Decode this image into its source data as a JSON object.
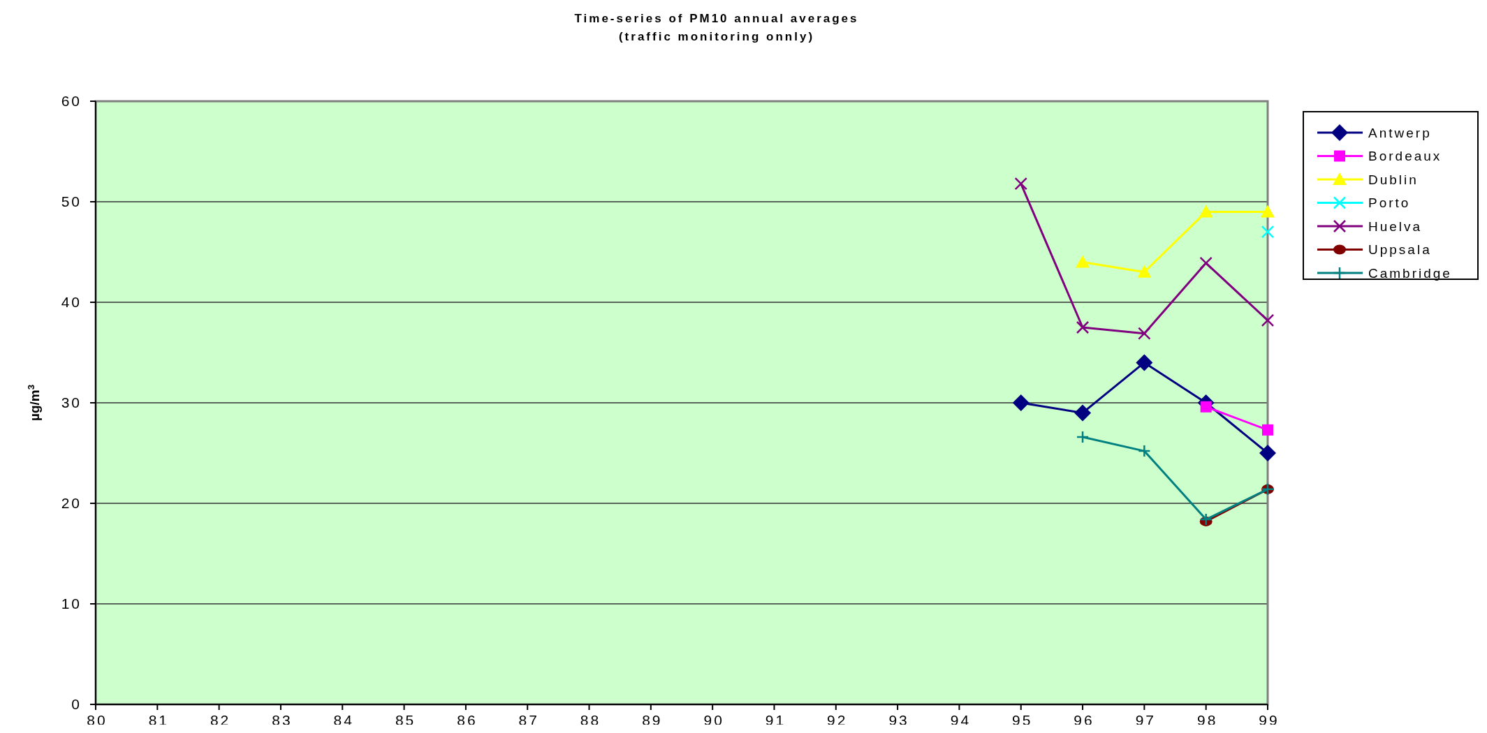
{
  "chart_data": {
    "type": "line",
    "title": "Time-series of PM10 annual averages",
    "subtitle": "(traffic monitoring onnly)",
    "ylabel": "µg/m$^{3}$",
    "xlim": [
      80,
      99
    ],
    "xticks": [
      80,
      81,
      82,
      83,
      84,
      85,
      86,
      87,
      88,
      89,
      90,
      91,
      92,
      93,
      94,
      95,
      96,
      97,
      98,
      99
    ],
    "ylim": [
      0,
      60
    ],
    "yticks": [
      0,
      10,
      20,
      30,
      40,
      50,
      60
    ],
    "grid": "y",
    "legend": "right",
    "series": [
      {
        "name": "Antwerp",
        "color": "#000080",
        "marker": "diamond",
        "x": [
          95,
          96,
          97,
          98,
          99
        ],
        "values": [
          30,
          29,
          34,
          30,
          25
        ]
      },
      {
        "name": "Bordeaux",
        "color": "#ff00ff",
        "marker": "square",
        "x": [
          98,
          99
        ],
        "values": [
          29.6,
          27.3
        ]
      },
      {
        "name": "Dublin",
        "color": "#ffff00",
        "marker": "triangle",
        "x": [
          96,
          97,
          98,
          99
        ],
        "values": [
          44,
          43,
          49,
          49
        ]
      },
      {
        "name": "Porto",
        "color": "#00ffff",
        "marker": "cross",
        "x": [
          99
        ],
        "values": [
          47
        ]
      },
      {
        "name": "Huelva",
        "color": "#800080",
        "marker": "cross",
        "x": [
          95,
          96,
          97,
          98,
          99
        ],
        "values": [
          51.8,
          37.5,
          36.9,
          43.9,
          38.2
        ]
      },
      {
        "name": "Uppsala",
        "color": "#800000",
        "marker": "circle",
        "x": [
          98,
          99
        ],
        "values": [
          18.2,
          21.4
        ]
      },
      {
        "name": "Cambridge",
        "color": "#008080",
        "marker": "plus",
        "x": [
          96,
          97,
          98,
          99
        ],
        "values": [
          26.6,
          25.2,
          18.4,
          21.4
        ]
      }
    ]
  }
}
